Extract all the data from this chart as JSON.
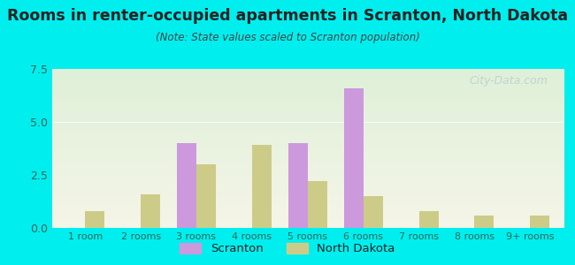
{
  "title": "Rooms in renter-occupied apartments in Scranton, North Dakota",
  "subtitle": "(Note: State values scaled to Scranton population)",
  "categories": [
    "1 room",
    "2 rooms",
    "3 rooms",
    "4 rooms",
    "5 rooms",
    "6 rooms",
    "7 rooms",
    "8 rooms",
    "9+ rooms"
  ],
  "scranton_values": [
    0,
    0,
    4.0,
    0,
    4.0,
    6.6,
    0,
    0,
    0
  ],
  "nd_values": [
    0.8,
    1.6,
    3.0,
    3.9,
    2.2,
    1.5,
    0.8,
    0.6,
    0.6
  ],
  "scranton_color": "#cc99dd",
  "nd_color": "#cccc88",
  "background_color": "#00eeee",
  "ylim": [
    0,
    7.5
  ],
  "yticks": [
    0,
    2.5,
    5,
    7.5
  ],
  "bar_width": 0.35,
  "title_color": "#222222",
  "subtitle_color": "#444444",
  "tick_color": "#336655",
  "watermark": "City-Data.com"
}
